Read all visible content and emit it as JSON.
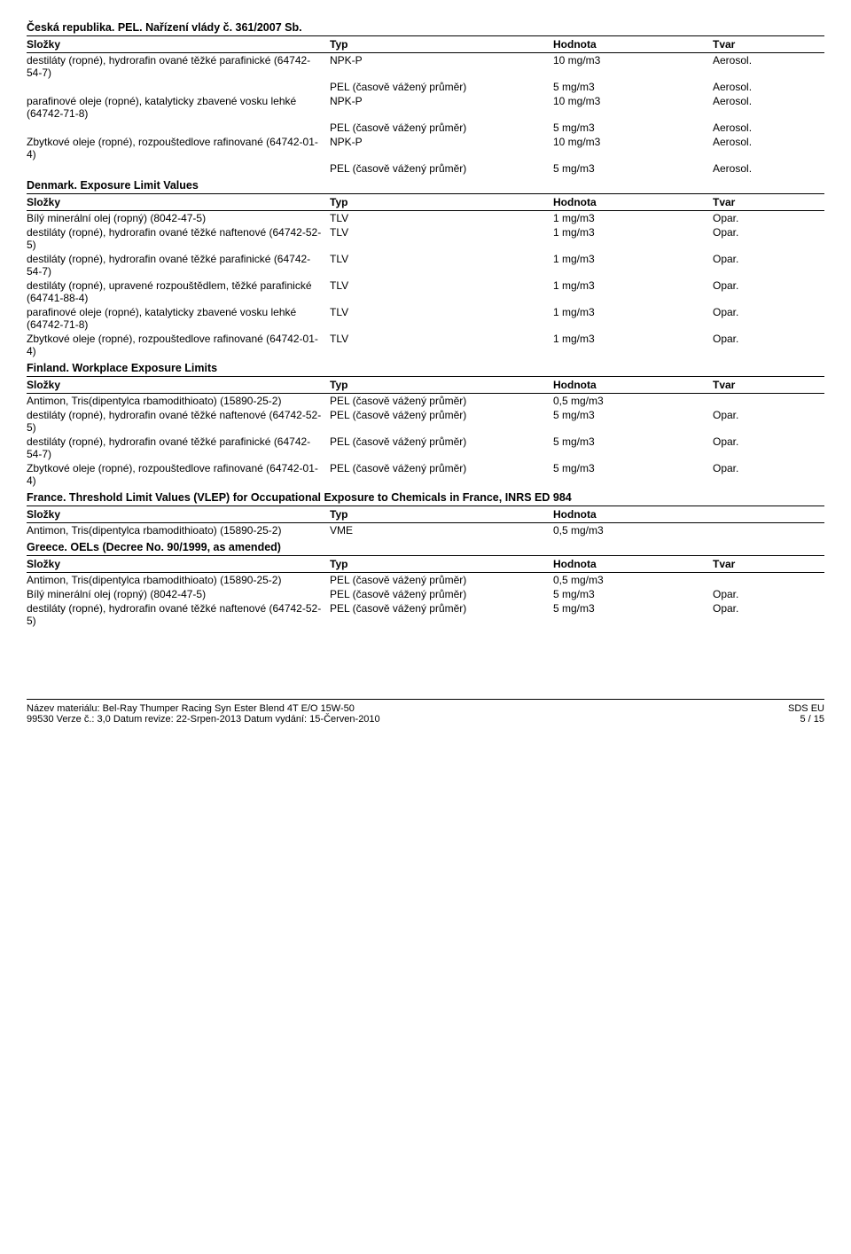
{
  "sections": {
    "cz": {
      "title": "Česká republika. PEL. Nařízení vlády č. 361/2007 Sb.",
      "head": {
        "comp": "Složky",
        "typ": "Typ",
        "val": "Hodnota",
        "form": "Tvar"
      },
      "rows": [
        {
          "comp": "destiláty (ropné), hydrorafin ované těžké parafinické (64742-54-7)",
          "typ": "NPK-P",
          "val": "10 mg/m3",
          "form": "Aerosol."
        },
        {
          "comp": "",
          "typ": "PEL (časově vážený průměr)",
          "val": "5 mg/m3",
          "form": "Aerosol."
        },
        {
          "comp": "parafinové oleje (ropné), katalyticky zbavené vosku lehké (64742-71-8)",
          "typ": "NPK-P",
          "val": "10 mg/m3",
          "form": "Aerosol."
        },
        {
          "comp": "",
          "typ": "PEL (časově vážený průměr)",
          "val": "5 mg/m3",
          "form": "Aerosol."
        },
        {
          "comp": "Zbytkové oleje (ropné), rozpouštedlove rafinované (64742-01-4)",
          "typ": "NPK-P",
          "val": "10 mg/m3",
          "form": "Aerosol."
        },
        {
          "comp": "",
          "typ": "PEL (časově vážený průměr)",
          "val": "5 mg/m3",
          "form": "Aerosol."
        }
      ]
    },
    "dk": {
      "title": "Denmark. Exposure Limit Values",
      "head": {
        "comp": "Složky",
        "typ": "Typ",
        "val": "Hodnota",
        "form": "Tvar"
      },
      "rows": [
        {
          "comp": "Bílý minerální olej (ropný) (8042-47-5)",
          "typ": "TLV",
          "val": "1 mg/m3",
          "form": "Opar."
        },
        {
          "comp": "destiláty (ropné), hydrorafin ované těžké naftenové (64742-52-5)",
          "typ": "TLV",
          "val": "1 mg/m3",
          "form": "Opar."
        },
        {
          "comp": "destiláty (ropné), hydrorafin ované těžké parafinické (64742-54-7)",
          "typ": "TLV",
          "val": "1 mg/m3",
          "form": "Opar."
        },
        {
          "comp": "destiláty (ropné), upravené rozpouštědlem, těžké parafinické (64741-88-4)",
          "typ": "TLV",
          "val": "1 mg/m3",
          "form": "Opar."
        },
        {
          "comp": "parafinové oleje (ropné), katalyticky zbavené vosku lehké (64742-71-8)",
          "typ": "TLV",
          "val": "1 mg/m3",
          "form": "Opar."
        },
        {
          "comp": "Zbytkové oleje (ropné), rozpouštedlove rafinované (64742-01-4)",
          "typ": "TLV",
          "val": "1 mg/m3",
          "form": "Opar."
        }
      ]
    },
    "fi": {
      "title": "Finland. Workplace Exposure Limits",
      "head": {
        "comp": "Složky",
        "typ": "Typ",
        "val": "Hodnota",
        "form": "Tvar"
      },
      "rows": [
        {
          "comp": "Antimon, Tris(dipentylca rbamodithioato) (15890-25-2)",
          "typ": "PEL (časově vážený průměr)",
          "val": "0,5 mg/m3",
          "form": ""
        },
        {
          "comp": "destiláty (ropné), hydrorafin ované těžké naftenové (64742-52-5)",
          "typ": "PEL (časově vážený průměr)",
          "val": "5 mg/m3",
          "form": "Opar."
        },
        {
          "comp": "destiláty (ropné), hydrorafin ované těžké parafinické (64742-54-7)",
          "typ": "PEL (časově vážený průměr)",
          "val": "5 mg/m3",
          "form": "Opar."
        },
        {
          "comp": "Zbytkové oleje (ropné), rozpouštedlove rafinované (64742-01-4)",
          "typ": "PEL (časově vážený průměr)",
          "val": "5 mg/m3",
          "form": "Opar."
        }
      ]
    },
    "fr": {
      "title": "France. Threshold Limit Values (VLEP) for Occupational Exposure to Chemicals in France, INRS ED 984",
      "head": {
        "comp": "Složky",
        "typ": "Typ",
        "val": "Hodnota"
      },
      "rows": [
        {
          "comp": "Antimon, Tris(dipentylca rbamodithioato) (15890-25-2)",
          "typ": "VME",
          "val": "0,5 mg/m3"
        }
      ]
    },
    "gr": {
      "title": "Greece. OELs (Decree No. 90/1999, as amended)",
      "head": {
        "comp": "Složky",
        "typ": "Typ",
        "val": "Hodnota",
        "form": "Tvar"
      },
      "rows": [
        {
          "comp": "Antimon, Tris(dipentylca rbamodithioato) (15890-25-2)",
          "typ": "PEL (časově vážený průměr)",
          "val": "0,5 mg/m3",
          "form": ""
        },
        {
          "comp": "Bílý minerální olej (ropný) (8042-47-5)",
          "typ": "PEL (časově vážený průměr)",
          "val": "5 mg/m3",
          "form": "Opar."
        },
        {
          "comp": "destiláty (ropné), hydrorafin ované těžké naftenové (64742-52-5)",
          "typ": "PEL (časově vážený průměr)",
          "val": "5 mg/m3",
          "form": "Opar."
        }
      ]
    }
  },
  "footer": {
    "line1": "Název materiálu: Bel-Ray Thumper Racing Syn Ester Blend 4T E/O 15W-50",
    "line2": "99530   Verze č.: 3,0   Datum revize: 22-Srpen-2013   Datum vydání: 15-Červen-2010",
    "right1": "SDS EU",
    "right2": "5 / 15"
  }
}
